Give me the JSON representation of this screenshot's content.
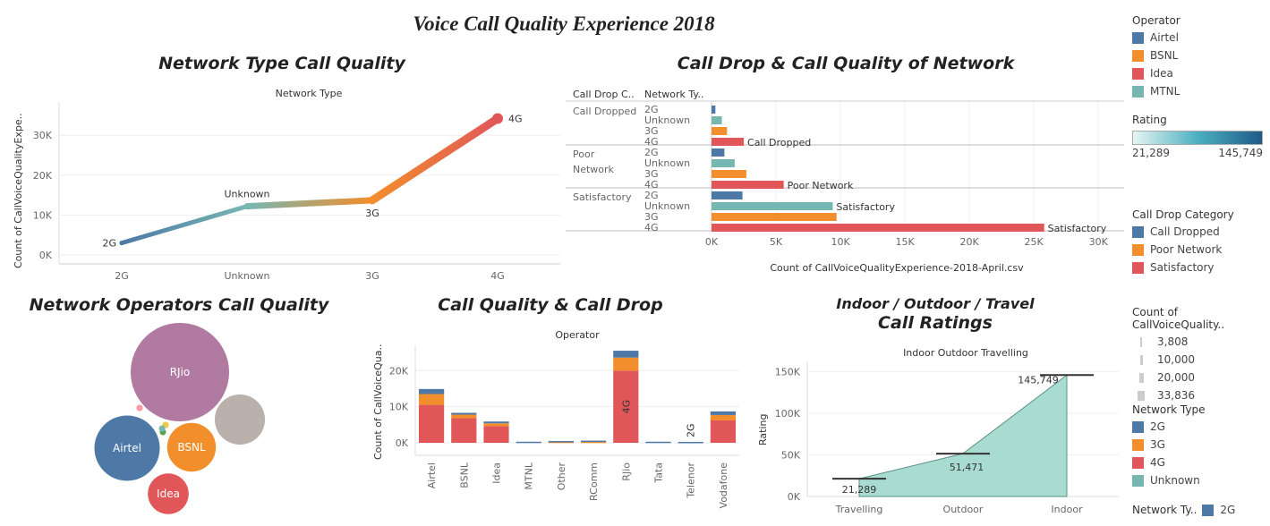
{
  "page_title": "Voice Call Quality Experience 2018",
  "colors": {
    "Airtel": "#4e79a7",
    "BSNL": "#f28e2b",
    "Idea": "#e15759",
    "MTNL": "#76b7b2",
    "2G": "#4e79a7",
    "3G": "#f28e2b",
    "4G": "#e15759",
    "Unknown": "#76b7b2",
    "Call Dropped": "#4e79a7",
    "Poor Network": "#f28e2b",
    "Satisfactory": "#e15759",
    "RJio": "#b07aa1",
    "Other": "#bab0ac",
    "area": "#a8dcd0"
  },
  "legends": {
    "operator": {
      "title": "Operator",
      "items": [
        "Airtel",
        "BSNL",
        "Idea",
        "MTNL"
      ]
    },
    "rating": {
      "title": "Rating",
      "min": "21,289",
      "max": "145,749"
    },
    "call_drop": {
      "title": "Call Drop Category",
      "items": [
        "Call Dropped",
        "Poor Network",
        "Satisfactory"
      ]
    },
    "count": {
      "title": "Count of CallVoiceQuality..",
      "items": [
        "3,808",
        "10,000",
        "20,000",
        "33,836"
      ]
    },
    "network_type": {
      "title": "Network Type",
      "items": [
        "2G",
        "3G",
        "4G",
        "Unknown"
      ]
    },
    "network_ty_short": {
      "title": "Network Ty..",
      "items": [
        "2G"
      ]
    }
  },
  "chart_data": [
    {
      "id": "network-type",
      "type": "line",
      "title": "Network Type Call Quality",
      "header": "Network Type",
      "ylabel": "Count of CallVoiceQualityExpe..",
      "categories": [
        "2G",
        "Unknown",
        "3G",
        "4G"
      ],
      "values": [
        3000,
        12200,
        13700,
        34200
      ],
      "yticks": [
        "0K",
        "10K",
        "20K",
        "30K"
      ],
      "ylim": [
        0,
        37000
      ]
    },
    {
      "id": "call-drop-network",
      "type": "bar",
      "orientation": "horizontal",
      "title": "Call Drop & Call Quality of Network",
      "col_headers": [
        "Call Drop C..",
        "Network Ty.."
      ],
      "xlabel": "Count of CallVoiceQualityExperience-2018-April.csv",
      "xticks": [
        "0K",
        "5K",
        "10K",
        "15K",
        "20K",
        "25K",
        "30K"
      ],
      "xlim": [
        0,
        32000
      ],
      "groups": [
        {
          "name": "Call Dropped",
          "label_lines": [
            "Call Dropped"
          ],
          "rows": [
            {
              "net": "2G",
              "value": 300
            },
            {
              "net": "Unknown",
              "value": 800
            },
            {
              "net": "3G",
              "value": 1200
            },
            {
              "net": "4G",
              "value": 2500,
              "label": "Call Dropped"
            }
          ]
        },
        {
          "name": "Poor Network",
          "label_lines": [
            "Poor",
            "Network"
          ],
          "rows": [
            {
              "net": "2G",
              "value": 1000
            },
            {
              "net": "Unknown",
              "value": 1800
            },
            {
              "net": "3G",
              "value": 2700
            },
            {
              "net": "4G",
              "value": 5600,
              "label": "Poor Network"
            }
          ]
        },
        {
          "name": "Satisfactory",
          "label_lines": [
            "Satisfactory"
          ],
          "rows": [
            {
              "net": "2G",
              "value": 2400
            },
            {
              "net": "Unknown",
              "value": 9400,
              "label": "Satisfactory"
            },
            {
              "net": "3G",
              "value": 9700
            },
            {
              "net": "4G",
              "value": 25800,
              "label": "Satisfactory"
            }
          ]
        }
      ]
    },
    {
      "id": "operators-bubble",
      "type": "bubble",
      "title": "Network Operators Call Quality",
      "bubbles": [
        {
          "name": "RJio",
          "label": "RJio",
          "size": 33836,
          "color": "#b07aa1"
        },
        {
          "name": "Airtel",
          "label": "Airtel",
          "size": 14900,
          "color": "#4e79a7"
        },
        {
          "name": "BSNL",
          "label": "BSNL",
          "size": 8300,
          "color": "#f28e2b"
        },
        {
          "name": "Other",
          "label": "",
          "size": 8800,
          "color": "#bab0ac"
        },
        {
          "name": "Idea",
          "label": "Idea",
          "size": 5800,
          "color": "#e15759"
        },
        {
          "name": "small-1",
          "label": "",
          "size": 150,
          "color": "#ff9da7"
        },
        {
          "name": "small-2",
          "label": "",
          "size": 150,
          "color": "#edc948"
        },
        {
          "name": "small-3",
          "label": "",
          "size": 100,
          "color": "#59a14f"
        },
        {
          "name": "small-4",
          "label": "",
          "size": 80,
          "color": "#76b7b2"
        }
      ]
    },
    {
      "id": "call-quality-drop",
      "type": "bar",
      "stacked": true,
      "title": "Call Quality & Call Drop",
      "header": "Operator",
      "ylabel": "Count of CallVoiceQua..",
      "yticks": [
        "0K",
        "10K",
        "20K"
      ],
      "ylim": [
        0,
        27000
      ],
      "categories": [
        "Airtel",
        "BSNL",
        "Idea",
        "MTNL",
        "Other",
        "RComm",
        "RJio",
        "Tata",
        "Telenor",
        "Vodafone"
      ],
      "series": [
        {
          "name": "4G",
          "values": [
            10500,
            6800,
            4600,
            0,
            0,
            0,
            20000,
            0,
            0,
            6200
          ]
        },
        {
          "name": "3G",
          "values": [
            3000,
            1000,
            800,
            0,
            300,
            300,
            3600,
            0,
            0,
            1500
          ]
        },
        {
          "name": "2G",
          "values": [
            1400,
            500,
            500,
            300,
            200,
            300,
            1900,
            300,
            250,
            1000
          ]
        }
      ],
      "annotations": [
        {
          "category": "RJio",
          "text": "4G"
        },
        {
          "category": "Telenor",
          "text": "2G"
        }
      ]
    },
    {
      "id": "ratings",
      "type": "area",
      "title_top": "Indoor / Outdoor / Travel",
      "title": "Call Ratings",
      "header": "Indoor Outdoor Travelling",
      "ylabel": "Rating",
      "categories": [
        "Travelling",
        "Outdoor",
        "Indoor"
      ],
      "values": [
        21289,
        51471,
        145749
      ],
      "labels": [
        "21,289",
        "51,471",
        "145,749"
      ],
      "yticks": [
        "0K",
        "50K",
        "100K",
        "150K"
      ],
      "ylim": [
        0,
        160000
      ]
    }
  ]
}
